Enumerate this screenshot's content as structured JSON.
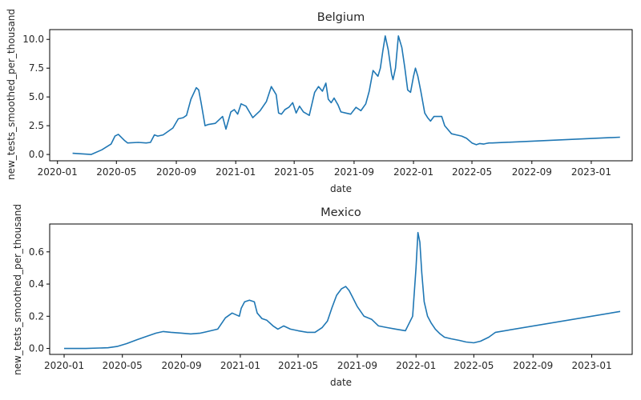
{
  "chart_data": [
    {
      "type": "line",
      "title": "Belgium",
      "xlabel": "date",
      "ylabel": "new_tests_smoothed_per_thousand",
      "x_ticks": [
        "2020-01",
        "2020-05",
        "2020-09",
        "2021-01",
        "2021-05",
        "2021-09",
        "2022-01",
        "2022-05",
        "2022-09",
        "2023-01"
      ],
      "y_ticks": [
        "0.0",
        "2.5",
        "5.0",
        "7.5",
        "10.0"
      ],
      "xlim": [
        "2019-12-16",
        "2023-03-26"
      ],
      "ylim": [
        -0.55,
        10.85
      ],
      "grid": false,
      "series": [
        {
          "color": "#1f77b4",
          "x": [
            "2020-02-01",
            "2020-03-10",
            "2020-04-01",
            "2020-04-20",
            "2020-04-28",
            "2020-05-05",
            "2020-05-18",
            "2020-05-24",
            "2020-06-15",
            "2020-07-01",
            "2020-07-10",
            "2020-07-18",
            "2020-07-25",
            "2020-08-05",
            "2020-08-25",
            "2020-09-05",
            "2020-09-15",
            "2020-09-22",
            "2020-10-01",
            "2020-10-12",
            "2020-10-17",
            "2020-10-22",
            "2020-10-30",
            "2020-11-05",
            "2020-11-20",
            "2020-12-05",
            "2020-12-12",
            "2020-12-22",
            "2020-12-29",
            "2021-01-05",
            "2021-01-12",
            "2021-01-22",
            "2021-02-05",
            "2021-02-20",
            "2021-03-05",
            "2021-03-15",
            "2021-03-25",
            "2021-03-30",
            "2021-04-05",
            "2021-04-12",
            "2021-04-20",
            "2021-04-28",
            "2021-05-05",
            "2021-05-12",
            "2021-05-20",
            "2021-06-01",
            "2021-06-12",
            "2021-06-20",
            "2021-06-28",
            "2021-07-05",
            "2021-07-10",
            "2021-07-16",
            "2021-07-22",
            "2021-07-30",
            "2021-08-05",
            "2021-08-15",
            "2021-08-25",
            "2021-09-05",
            "2021-09-15",
            "2021-09-25",
            "2021-10-02",
            "2021-10-10",
            "2021-10-20",
            "2021-10-25",
            "2021-10-30",
            "2021-11-04",
            "2021-11-10",
            "2021-11-17",
            "2021-11-20",
            "2021-11-25",
            "2021-12-01",
            "2021-12-08",
            "2021-12-14",
            "2021-12-20",
            "2021-12-26",
            "2022-01-01",
            "2022-01-05",
            "2022-01-10",
            "2022-01-16",
            "2022-01-24",
            "2022-01-30",
            "2022-02-05",
            "2022-02-12",
            "2022-02-20",
            "2022-02-28",
            "2022-03-06",
            "2022-03-12",
            "2022-03-20",
            "2022-03-30",
            "2022-04-10",
            "2022-04-20",
            "2022-05-01",
            "2022-05-10",
            "2022-05-17",
            "2022-05-25",
            "2022-05-30",
            "2022-06-05",
            "2022-06-12",
            "2023-03-01"
          ],
          "values": [
            0.1,
            0.0,
            0.4,
            0.9,
            1.6,
            1.75,
            1.2,
            1.0,
            1.05,
            1.0,
            1.05,
            1.7,
            1.6,
            1.7,
            2.3,
            3.1,
            3.2,
            3.4,
            4.8,
            5.8,
            5.6,
            4.5,
            2.5,
            2.6,
            2.7,
            3.3,
            2.2,
            3.7,
            3.9,
            3.5,
            4.4,
            4.2,
            3.2,
            3.8,
            4.6,
            5.9,
            5.2,
            3.6,
            3.5,
            3.9,
            4.1,
            4.5,
            3.6,
            4.2,
            3.7,
            3.4,
            5.4,
            5.9,
            5.5,
            6.2,
            4.8,
            4.5,
            4.9,
            4.3,
            3.7,
            3.6,
            3.5,
            4.1,
            3.8,
            4.4,
            5.5,
            7.3,
            6.8,
            7.5,
            9.0,
            10.3,
            9.1,
            7.0,
            6.5,
            7.5,
            10.3,
            9.3,
            7.6,
            5.6,
            5.4,
            6.8,
            7.5,
            6.8,
            5.5,
            3.6,
            3.2,
            2.9,
            3.3,
            3.3,
            3.3,
            2.5,
            2.2,
            1.8,
            1.7,
            1.6,
            1.4,
            1.0,
            0.85,
            0.95,
            0.9,
            0.95,
            1.0,
            1.0,
            1.5
          ]
        }
      ]
    },
    {
      "type": "line",
      "title": "Mexico",
      "xlabel": "date",
      "ylabel": "new_tests_smoothed_per_thousand",
      "x_ticks": [
        "2020-01",
        "2020-05",
        "2020-09",
        "2021-01",
        "2021-05",
        "2021-09",
        "2022-01",
        "2022-05",
        "2022-09",
        "2023-01"
      ],
      "y_ticks": [
        "0.0",
        "0.2",
        "0.4",
        "0.6"
      ],
      "xlim": [
        "2019-12-02",
        "2023-03-26"
      ],
      "ylim": [
        -0.037,
        0.773
      ],
      "grid": false,
      "series": [
        {
          "color": "#1f77b4",
          "x": [
            "2020-01-01",
            "2020-02-15",
            "2020-03-15",
            "2020-04-01",
            "2020-04-20",
            "2020-05-10",
            "2020-06-01",
            "2020-06-20",
            "2020-07-10",
            "2020-07-25",
            "2020-08-10",
            "2020-09-01",
            "2020-09-20",
            "2020-10-10",
            "2020-11-01",
            "2020-11-15",
            "2020-12-01",
            "2020-12-15",
            "2020-12-30",
            "2021-01-03",
            "2021-01-10",
            "2021-01-20",
            "2021-01-30",
            "2021-02-05",
            "2021-02-15",
            "2021-02-25",
            "2021-03-10",
            "2021-03-20",
            "2021-04-01",
            "2021-04-15",
            "2021-05-01",
            "2021-05-20",
            "2021-06-05",
            "2021-06-20",
            "2021-07-01",
            "2021-07-10",
            "2021-07-20",
            "2021-07-30",
            "2021-08-08",
            "2021-08-15",
            "2021-08-22",
            "2021-09-01",
            "2021-09-15",
            "2021-10-01",
            "2021-10-15",
            "2021-11-01",
            "2021-11-20",
            "2021-12-10",
            "2021-12-25",
            "2022-01-01",
            "2022-01-05",
            "2022-01-09",
            "2022-01-13",
            "2022-01-18",
            "2022-01-25",
            "2022-02-01",
            "2022-02-10",
            "2022-02-20",
            "2022-03-01",
            "2022-03-15",
            "2022-04-01",
            "2022-04-15",
            "2022-05-01",
            "2022-05-15",
            "2022-06-01",
            "2022-06-15",
            "2023-03-01"
          ],
          "values": [
            0.0,
            0.0,
            0.003,
            0.004,
            0.012,
            0.03,
            0.055,
            0.075,
            0.095,
            0.105,
            0.1,
            0.095,
            0.09,
            0.095,
            0.11,
            0.12,
            0.19,
            0.22,
            0.2,
            0.25,
            0.29,
            0.3,
            0.29,
            0.22,
            0.185,
            0.175,
            0.14,
            0.12,
            0.14,
            0.12,
            0.11,
            0.1,
            0.1,
            0.13,
            0.17,
            0.25,
            0.33,
            0.37,
            0.385,
            0.36,
            0.32,
            0.26,
            0.2,
            0.18,
            0.14,
            0.13,
            0.12,
            0.11,
            0.2,
            0.5,
            0.72,
            0.66,
            0.47,
            0.29,
            0.2,
            0.16,
            0.12,
            0.09,
            0.07,
            0.06,
            0.05,
            0.04,
            0.035,
            0.045,
            0.07,
            0.1,
            0.23
          ]
        }
      ]
    }
  ]
}
